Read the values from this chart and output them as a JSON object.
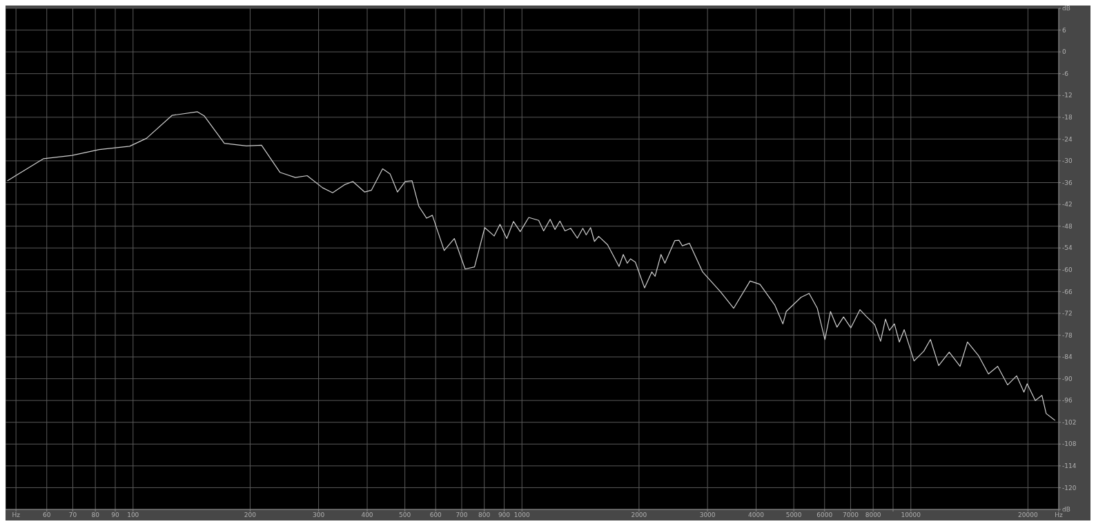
{
  "chart_data": {
    "type": "line",
    "log": "x",
    "grid": true,
    "marker": "none",
    "line_style": "solid",
    "xlim": [
      47,
      24000
    ],
    "xticks": [
      {
        "value": 50,
        "label": "Hz"
      },
      60,
      70,
      80,
      90,
      100,
      200,
      300,
      400,
      500,
      600,
      700,
      800,
      900,
      1000,
      2000,
      3000,
      4000,
      5000,
      6000,
      7000,
      8000,
      {
        "value": 9000,
        "label": null
      },
      10000,
      20000,
      {
        "value": 24000,
        "label": "Hz"
      }
    ],
    "ylim": [
      -126,
      12
    ],
    "yticks": [
      {
        "value": 12,
        "label": "dB"
      },
      6,
      0,
      -6,
      -12,
      -18,
      -24,
      -30,
      -36,
      -42,
      -48,
      -54,
      -60,
      -66,
      -72,
      -78,
      -84,
      -90,
      -96,
      -102,
      -108,
      -114,
      -120,
      {
        "value": -126,
        "label": "dB"
      }
    ],
    "x": [
      47.5,
      58.9,
      69.7,
      81.9,
      98,
      108.3,
      125.9,
      146.4,
      152.3,
      171.7,
      195.6,
      214,
      238.8,
      261.5,
      280.4,
      306.9,
      326,
      349.6,
      367.5,
      394.1,
      410.2,
      438.3,
      458,
      478.6,
      501.2,
      521.7,
      542.9,
      568.7,
      588.3,
      631,
      670,
      714.4,
      755.3,
      802.3,
      848.5,
      878,
      914,
      951,
      990,
      1041,
      1104,
      1137,
      1182,
      1216,
      1252,
      1290,
      1335,
      1388,
      1434,
      1463,
      1501,
      1536,
      1575,
      1660,
      1777,
      1822,
      1865,
      1901,
      1957,
      2067,
      2157,
      2199,
      2278,
      2331,
      2471,
      2534,
      2584,
      2696,
      2914,
      3242,
      3503,
      3860,
      4093,
      4467,
      4688,
      4781,
      5217,
      5475,
      5747,
      6011,
      6213,
      6457,
      6713,
      7008,
      7396,
      7689,
      8073,
      8360,
      8605,
      8808,
      9071,
      9340,
      9613,
      10190,
      10800,
      11230,
      11790,
      12550,
      13380,
      13980,
      14940,
      15830,
      16720,
      17730,
      18710,
      19530,
      19910,
      20890,
      21730,
      22280,
      23500
    ],
    "series": [
      {
        "color": "#d0d0d0",
        "values": [
          -35.5,
          -29.4,
          -28.5,
          -26.9,
          -26,
          -23.8,
          -17.5,
          -16.5,
          -17.6,
          -25.2,
          -25.9,
          -25.7,
          -33.2,
          -34.6,
          -34.1,
          -37.4,
          -38.8,
          -36.6,
          -35.7,
          -38.6,
          -38.1,
          -32.2,
          -33.6,
          -38.6,
          -35.7,
          -35.5,
          -42.5,
          -45.8,
          -45,
          -54.7,
          -51.4,
          -59.8,
          -59.2,
          -48.4,
          -50.7,
          -47.5,
          -51.4,
          -46.7,
          -49.5,
          -45.6,
          -46.4,
          -49.3,
          -46.1,
          -48.9,
          -46.6,
          -49.3,
          -48.6,
          -51.3,
          -48.6,
          -50.4,
          -48.4,
          -52.2,
          -50.8,
          -53.1,
          -59.1,
          -55.8,
          -58.2,
          -57,
          -57.9,
          -65,
          -60.6,
          -61.8,
          -55.8,
          -58.2,
          -52,
          -51.9,
          -53.4,
          -52.7,
          -60.6,
          -66.1,
          -70.6,
          -63.1,
          -64,
          -69.7,
          -74.9,
          -71.5,
          -67.6,
          -66.5,
          -70.6,
          -79.2,
          -71.5,
          -75.8,
          -73,
          -76,
          -71,
          -72.9,
          -75.1,
          -79.7,
          -73.6,
          -76.7,
          -74.9,
          -79.9,
          -76.5,
          -85.1,
          -82.4,
          -79.2,
          -86.4,
          -82.7,
          -86.6,
          -79.9,
          -83.7,
          -88.7,
          -86.6,
          -91.7,
          -89.2,
          -93.7,
          -91.4,
          -96,
          -94.6,
          -99.6,
          -101.5
        ]
      }
    ]
  }
}
